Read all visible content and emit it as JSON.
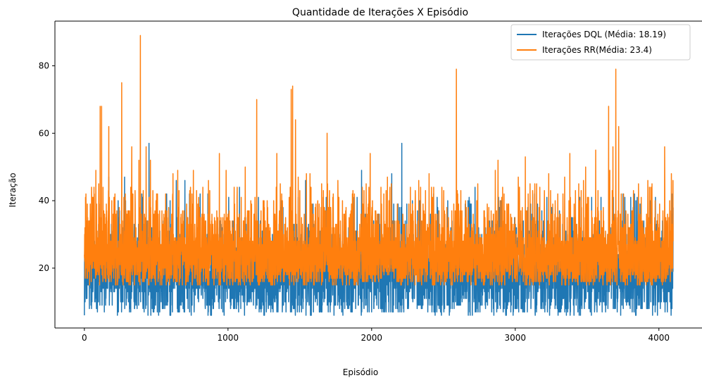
{
  "chart_data": {
    "type": "line",
    "title": "Quantidade de Iterações X Episódio",
    "xlabel": "Episódio",
    "ylabel": "Iteração",
    "xlim": [
      -205,
      4305
    ],
    "ylim": [
      2.25,
      93.25
    ],
    "x_ticks": [
      0,
      1000,
      2000,
      3000,
      4000
    ],
    "y_ticks": [
      20,
      40,
      60,
      80
    ],
    "grid": false,
    "legend_position": "top-right",
    "series": [
      {
        "name": "Iterações DQL (Média: 18.19)",
        "color": "#1f77b4",
        "n_points": 4100,
        "min": 6,
        "max": 57,
        "mean": 18.19,
        "peaks": [
          [
            170,
            47
          ],
          [
            280,
            47
          ],
          [
            450,
            57
          ],
          [
            640,
            46
          ],
          [
            700,
            46
          ],
          [
            1080,
            44
          ],
          [
            1540,
            46
          ],
          [
            1930,
            49
          ],
          [
            2140,
            48
          ],
          [
            2210,
            57
          ],
          [
            2720,
            44
          ],
          [
            2890,
            38
          ],
          [
            3750,
            42
          ],
          [
            3830,
            42
          ]
        ]
      },
      {
        "name": "Iterações RR(Média: 23.4)",
        "color": "#ff7f0e",
        "n_points": 4100,
        "min": 12,
        "max": 89,
        "mean": 23.4,
        "peaks": [
          [
            50,
            44
          ],
          [
            80,
            49
          ],
          [
            110,
            68
          ],
          [
            120,
            68
          ],
          [
            170,
            62
          ],
          [
            260,
            75
          ],
          [
            330,
            56
          ],
          [
            380,
            52
          ],
          [
            390,
            89
          ],
          [
            430,
            56
          ],
          [
            460,
            52
          ],
          [
            650,
            49
          ],
          [
            940,
            54
          ],
          [
            1120,
            50
          ],
          [
            1200,
            70
          ],
          [
            1340,
            54
          ],
          [
            1440,
            73
          ],
          [
            1450,
            74
          ],
          [
            1470,
            64
          ],
          [
            1690,
            60
          ],
          [
            1990,
            54
          ],
          [
            2400,
            48
          ],
          [
            2590,
            79
          ],
          [
            2880,
            52
          ],
          [
            3070,
            53
          ],
          [
            3380,
            54
          ],
          [
            3490,
            50
          ],
          [
            3560,
            55
          ],
          [
            3650,
            68
          ],
          [
            3680,
            56
          ],
          [
            3700,
            79
          ],
          [
            3720,
            62
          ],
          [
            4040,
            56
          ]
        ]
      }
    ]
  }
}
